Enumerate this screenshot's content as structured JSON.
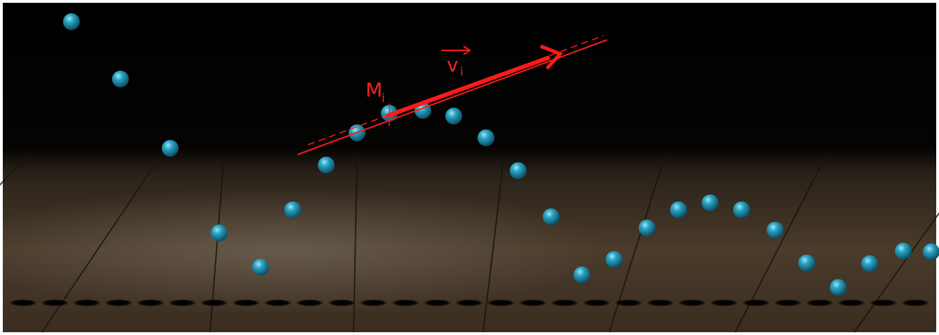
{
  "labels": {
    "point": "M",
    "point_index": "i",
    "velocity": "v",
    "velocity_index": "i"
  }
}
